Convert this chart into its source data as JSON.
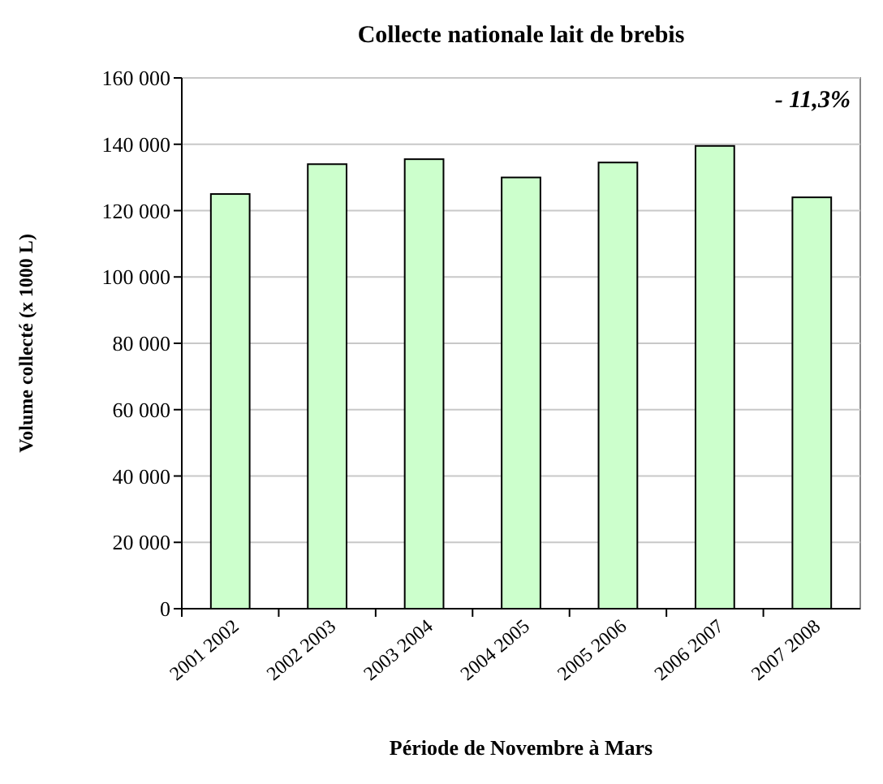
{
  "chart_data": {
    "type": "bar",
    "title": "Collecte nationale lait de brebis",
    "xlabel": "Période de Novembre à Mars",
    "ylabel": "Volume collecté (x 1000 L)",
    "categories": [
      "2001 2002",
      "2002 2003",
      "2003 2004",
      "2004 2005",
      "2005 2006",
      "2006 2007",
      "2007 2008"
    ],
    "values": [
      125000,
      134000,
      135500,
      130000,
      134500,
      139500,
      124000
    ],
    "color": "#ccffcc",
    "ylim": [
      0,
      160000
    ],
    "yticks": [
      {
        "value": 0,
        "label": "0"
      },
      {
        "value": 20000,
        "label": "20 000"
      },
      {
        "value": 40000,
        "label": "40 000"
      },
      {
        "value": 60000,
        "label": "60 000"
      },
      {
        "value": 80000,
        "label": "80 000"
      },
      {
        "value": 100000,
        "label": "100 000"
      },
      {
        "value": 120000,
        "label": "120 000"
      },
      {
        "value": 140000,
        "label": "140 000"
      },
      {
        "value": 160000,
        "label": "160 000"
      }
    ],
    "grid": "y",
    "annotations": [
      "- 11,3%"
    ]
  }
}
